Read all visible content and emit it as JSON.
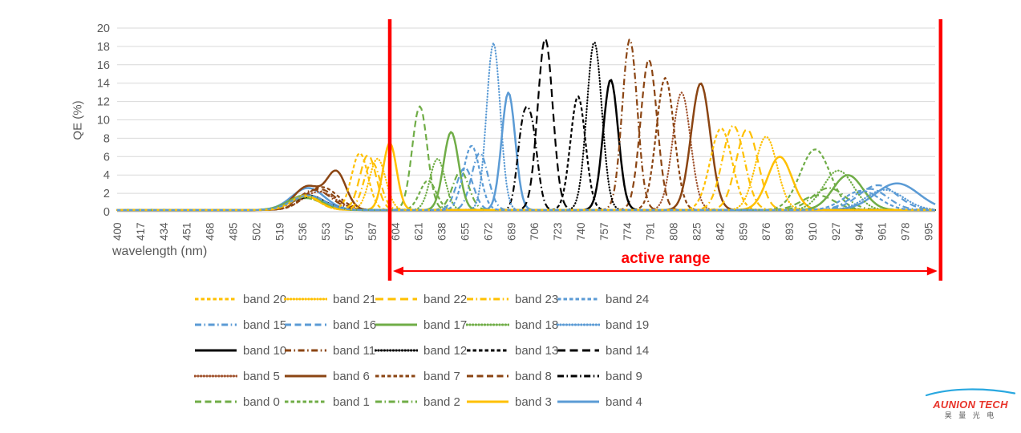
{
  "chart_data": {
    "type": "line",
    "title": "",
    "xlabel": "wavelength (nm)",
    "ylabel": "QE (%)",
    "x_range": [
      400,
      1000
    ],
    "ylim": [
      0,
      20
    ],
    "y_tick_step": 2,
    "y_ticks": [
      0,
      2,
      4,
      6,
      8,
      10,
      12,
      14,
      16,
      18,
      20
    ],
    "x_ticks": [
      400,
      417,
      434,
      451,
      468,
      485,
      502,
      519,
      536,
      553,
      570,
      587,
      604,
      621,
      638,
      655,
      672,
      689,
      706,
      723,
      740,
      757,
      774,
      791,
      808,
      825,
      842,
      859,
      876,
      893,
      910,
      927,
      944,
      961,
      978,
      995
    ],
    "x_tick_rotation": -90,
    "grid": "horizontal",
    "legend_position": "bottom",
    "annotation": {
      "label": "active range",
      "x_start_nm": 600,
      "x_end_nm": 1004,
      "color": "#fe0000"
    },
    "series": [
      {
        "name": "band 0",
        "color": "#70AD47",
        "style": "dash",
        "peaks": [
          [
            538,
            1.6,
            12
          ],
          [
            622,
            11.3,
            5.5
          ],
          [
            914,
            1.6,
            12
          ]
        ]
      },
      {
        "name": "band 1",
        "color": "#70AD47",
        "style": "short-dash",
        "peaks": [
          [
            538,
            1.3,
            12
          ],
          [
            628,
            3.2,
            6
          ],
          [
            912,
            6.6,
            11
          ]
        ]
      },
      {
        "name": "band 2",
        "color": "#70AD47",
        "style": "dash-dot",
        "peaks": [
          [
            538,
            1.3,
            12
          ],
          [
            652,
            4.2,
            6
          ],
          [
            922,
            2.4,
            12
          ]
        ]
      },
      {
        "name": "band 3",
        "color": "#FFC000",
        "style": "solid",
        "peaks": [
          [
            538,
            1.5,
            11
          ],
          [
            600,
            7.3,
            5
          ],
          [
            886,
            5.8,
            9
          ]
        ]
      },
      {
        "name": "band 4",
        "color": "#5B9BD5",
        "style": "solid",
        "peaks": [
          [
            540,
            2.4,
            12
          ],
          [
            687,
            12.8,
            5
          ],
          [
            972,
            2.9,
            16
          ]
        ]
      },
      {
        "name": "band 5",
        "color": "#A0522D",
        "style": "dot",
        "peaks": [
          [
            548,
            2.0,
            12
          ],
          [
            814,
            12.8,
            6.5
          ]
        ]
      },
      {
        "name": "band 6",
        "color": "#8B4513",
        "style": "solid",
        "peaks": [
          [
            540,
            2.6,
            10
          ],
          [
            561,
            4.0,
            7
          ],
          [
            828,
            13.8,
            7
          ]
        ]
      },
      {
        "name": "band 7",
        "color": "#8B4513",
        "style": "short-dash",
        "peaks": [
          [
            550,
            2.5,
            12
          ],
          [
            802,
            14.4,
            6.5
          ]
        ]
      },
      {
        "name": "band 8",
        "color": "#8B4513",
        "style": "dash",
        "peaks": [
          [
            548,
            2.3,
            12
          ],
          [
            790,
            16.4,
            6
          ]
        ]
      },
      {
        "name": "band 9",
        "color": "#000000",
        "style": "dash-dot",
        "peaks": [
          [
            540,
            1.4,
            12
          ],
          [
            697,
            7.2,
            4
          ],
          [
            704,
            8.6,
            4.5
          ]
        ]
      },
      {
        "name": "band 10",
        "color": "#000000",
        "style": "solid",
        "peaks": [
          [
            540,
            1.6,
            12
          ],
          [
            762,
            14.2,
            5.5
          ]
        ]
      },
      {
        "name": "band 11",
        "color": "#8B4513",
        "style": "dash-dot",
        "peaks": [
          [
            545,
            2.2,
            12
          ],
          [
            776,
            18.6,
            5.5
          ]
        ]
      },
      {
        "name": "band 12",
        "color": "#000000",
        "style": "dot",
        "peaks": [
          [
            540,
            1.5,
            12
          ],
          [
            750,
            18.3,
            5.5
          ]
        ]
      },
      {
        "name": "band 13",
        "color": "#000000",
        "style": "short-dash",
        "peaks": [
          [
            540,
            1.5,
            12
          ],
          [
            738,
            12.4,
            5.5
          ]
        ]
      },
      {
        "name": "band 14",
        "color": "#000000",
        "style": "long-dash",
        "peaks": [
          [
            540,
            1.5,
            12
          ],
          [
            714,
            18.7,
            5.5
          ]
        ]
      },
      {
        "name": "band 15",
        "color": "#5B9BD5",
        "style": "dash-dot",
        "peaks": [
          [
            540,
            1.5,
            12
          ],
          [
            666,
            6.2,
            6
          ],
          [
            952,
            2.3,
            13
          ]
        ]
      },
      {
        "name": "band 16",
        "color": "#5B9BD5",
        "style": "dash",
        "peaks": [
          [
            540,
            1.5,
            12
          ],
          [
            655,
            4.6,
            6
          ],
          [
            958,
            2.7,
            14
          ]
        ]
      },
      {
        "name": "band 17",
        "color": "#70AD47",
        "style": "solid",
        "peaks": [
          [
            538,
            1.6,
            12
          ],
          [
            645,
            8.5,
            5.5
          ],
          [
            936,
            3.8,
            11
          ]
        ]
      },
      {
        "name": "band 18",
        "color": "#70AD47",
        "style": "dot",
        "peaks": [
          [
            538,
            1.4,
            12
          ],
          [
            635,
            5.6,
            5.5
          ],
          [
            929,
            4.3,
            11
          ]
        ]
      },
      {
        "name": "band 19",
        "color": "#5B9BD5",
        "style": "dot",
        "peaks": [
          [
            540,
            1.6,
            12
          ],
          [
            676,
            18.2,
            5
          ],
          [
            963,
            2.2,
            14
          ]
        ]
      },
      {
        "name": "band 20",
        "color": "#FFC000",
        "style": "short-dash",
        "peaks": [
          [
            538,
            1.6,
            10
          ],
          [
            578,
            6.2,
            6
          ],
          [
            843,
            8.9,
            8
          ]
        ]
      },
      {
        "name": "band 21",
        "color": "#FFC000",
        "style": "dot",
        "peaks": [
          [
            538,
            1.5,
            10
          ],
          [
            591,
            5.6,
            6
          ],
          [
            876,
            8.0,
            8
          ]
        ]
      },
      {
        "name": "band 22",
        "color": "#FFC000",
        "style": "long-dash",
        "peaks": [
          [
            538,
            1.6,
            10
          ],
          [
            584,
            6.0,
            6
          ],
          [
            862,
            8.8,
            8
          ]
        ]
      },
      {
        "name": "band 23",
        "color": "#FFC000",
        "style": "dash-dot",
        "peaks": [
          [
            538,
            1.5,
            10
          ],
          [
            587,
            5.2,
            6
          ],
          [
            852,
            9.2,
            8
          ]
        ]
      },
      {
        "name": "band 24",
        "color": "#5B9BD5",
        "style": "short-dash",
        "peaks": [
          [
            540,
            1.6,
            12
          ],
          [
            660,
            7.0,
            6
          ],
          [
            946,
            2.1,
            13
          ]
        ]
      }
    ]
  },
  "legend": {
    "rows": [
      [
        20,
        21,
        22,
        23,
        24
      ],
      [
        15,
        16,
        17,
        18,
        19
      ],
      [
        10,
        11,
        12,
        13,
        14
      ],
      [
        5,
        6,
        7,
        8,
        9
      ],
      [
        0,
        1,
        2,
        3,
        4
      ]
    ]
  },
  "logo": {
    "brand": "AUNION TECH",
    "subtitle": "昊 量 光 电"
  },
  "colors": {
    "grid": "#D9D9D9",
    "axis_text": "#595959",
    "annotation_red": "#fe0000",
    "logo_red": "#e8342a",
    "logo_blue": "#29a8e0"
  }
}
